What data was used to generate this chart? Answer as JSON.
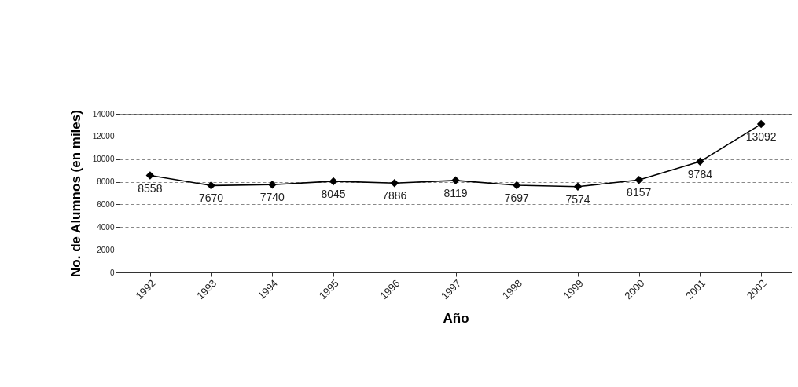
{
  "chart_data": {
    "type": "line",
    "xlabel": "Año",
    "ylabel": "No. de Alumnos (en miles)",
    "categories": [
      "1992",
      "1993",
      "1994",
      "1995",
      "1996",
      "1997",
      "1998",
      "1999",
      "2000",
      "2001",
      "2002"
    ],
    "series": [
      {
        "color": "#000000",
        "values": [
          8558,
          7670,
          7740,
          8045,
          7886,
          8119,
          7697,
          7574,
          8157,
          9784,
          13092
        ]
      }
    ],
    "ylim": [
      0,
      14000
    ],
    "yticks": [
      0,
      2000,
      4000,
      6000,
      8000,
      10000,
      12000,
      14000
    ],
    "grid": "y",
    "legend": false,
    "marker": "diamond",
    "line_style": "solid",
    "data_labels": true
  }
}
